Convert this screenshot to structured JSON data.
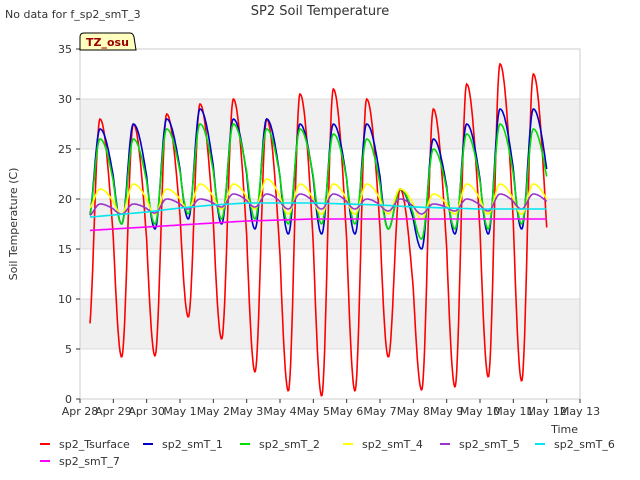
{
  "chart_data": {
    "type": "line",
    "title": "SP2 Soil Temperature",
    "no_data_note": "No data for f_sp2_smT_3",
    "site_badge": "TZ_osu",
    "xlabel": "Time",
    "ylabel": "Soil Temperature (C)",
    "ylim": [
      0,
      35
    ],
    "yticks": [
      0,
      5,
      10,
      15,
      20,
      25,
      30,
      35
    ],
    "xlim": [
      0,
      15
    ],
    "xtick_labels": [
      "Apr 28",
      "Apr 29",
      "Apr 30",
      "May 1",
      "May 2",
      "May 3",
      "May 4",
      "May 5",
      "May 6",
      "May 7",
      "May 8",
      "May 9",
      "May 10",
      "May 11",
      "May 12",
      "May 13"
    ],
    "grid_bands": true,
    "legend_position": "bottom",
    "series": [
      {
        "name": "sp2_Tsurface",
        "color": "#ff0000",
        "daily_max": [
          28,
          27.5,
          28.5,
          29.5,
          30,
          28,
          30.5,
          31,
          30,
          21,
          29,
          31.5,
          33.5,
          32.5
        ],
        "daily_min": [
          6.5,
          4.2,
          4.3,
          8.2,
          6,
          2.7,
          0.8,
          0.3,
          0.8,
          4.2,
          0.9,
          1.2,
          2.2,
          1.8
        ]
      },
      {
        "name": "sp2_smT_1",
        "color": "#0000cc",
        "daily_max": [
          27,
          27.5,
          28,
          29,
          28,
          28,
          27.5,
          27.5,
          27.5,
          21,
          26,
          27.5,
          29,
          29
        ],
        "daily_min": [
          18,
          17.5,
          17,
          18,
          17.5,
          17,
          16.5,
          16.5,
          16.5,
          17,
          15,
          16.5,
          16.5,
          17
        ]
      },
      {
        "name": "sp2_smT_2",
        "color": "#00dd00",
        "daily_max": [
          26,
          26,
          27,
          27.5,
          27.5,
          27,
          27,
          26.5,
          26,
          21,
          25,
          26.5,
          27.5,
          27
        ],
        "daily_min": [
          18,
          17.5,
          17.5,
          18.5,
          18,
          18,
          17.5,
          17.5,
          17.5,
          17,
          16,
          17,
          17,
          17.5
        ]
      },
      {
        "name": "sp2_smT_4",
        "color": "#ffff00",
        "daily_max": [
          21,
          21.5,
          21,
          21.5,
          21.5,
          22,
          21.5,
          21.5,
          21.5,
          21,
          20.5,
          21.5,
          21.5,
          21.5
        ],
        "daily_min": [
          19,
          18.5,
          18.5,
          19,
          19,
          19,
          18.5,
          18.5,
          18.5,
          18.5,
          18,
          18.5,
          18.5,
          18.5
        ]
      },
      {
        "name": "sp2_smT_5",
        "color": "#9933cc",
        "daily_max": [
          19.5,
          19.5,
          20,
          20,
          20.5,
          20.5,
          20.5,
          20.5,
          20,
          20,
          19.5,
          20,
          20.5,
          20.5
        ],
        "daily_min": [
          18.3,
          18.5,
          18.6,
          19,
          19.2,
          19.2,
          19,
          19,
          19,
          18.8,
          18.5,
          18.8,
          18.8,
          19
        ]
      },
      {
        "name": "sp2_smT_6",
        "color": "#00e5ee",
        "values_by_day": [
          18.1,
          18.4,
          18.7,
          19.1,
          19.4,
          19.6,
          19.6,
          19.6,
          19.5,
          19.4,
          19.2,
          19.1,
          19.0,
          19.0,
          19.0
        ]
      },
      {
        "name": "sp2_smT_7",
        "color": "#ff00ff",
        "values_by_day": [
          16.8,
          17.0,
          17.2,
          17.4,
          17.6,
          17.8,
          17.9,
          18.0,
          18.0,
          18.0,
          18.0,
          18.0,
          18.0,
          18.0,
          18.0
        ]
      }
    ]
  }
}
